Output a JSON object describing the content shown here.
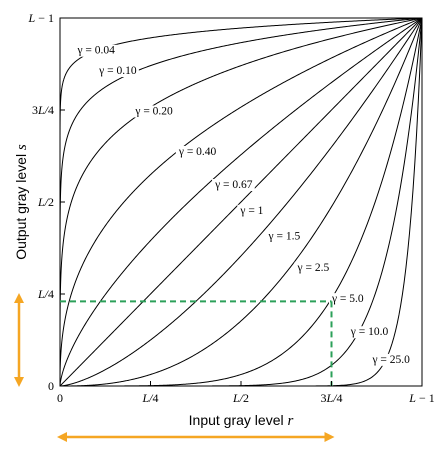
{
  "chart_data": {
    "type": "line",
    "title": "",
    "xlabel": "Input gray level",
    "xlabel_var": "r",
    "ylabel": "Output gray level",
    "ylabel_var": "s",
    "xlim": [
      0,
      1
    ],
    "ylim": [
      0,
      1
    ],
    "x_ticks": [
      {
        "value": 0,
        "label": "0"
      },
      {
        "value": 0.25,
        "label": "L/4"
      },
      {
        "value": 0.5,
        "label": "L/2"
      },
      {
        "value": 0.75,
        "label": "3L/4"
      },
      {
        "value": 1,
        "label": "L − 1"
      }
    ],
    "y_ticks": [
      {
        "value": 0,
        "label": "0"
      },
      {
        "value": 0.25,
        "label": "L/4"
      },
      {
        "value": 0.5,
        "label": "L/2"
      },
      {
        "value": 0.75,
        "label": "3L/4"
      },
      {
        "value": 1,
        "label": "L − 1"
      }
    ],
    "function": "s = (L-1) * (r/(L-1))^gamma",
    "series": [
      {
        "gamma": 0.04,
        "label": "γ = 0.04",
        "label_at": [
          0.1,
          0.91
        ]
      },
      {
        "gamma": 0.1,
        "label": "γ = 0.10",
        "label_at": [
          0.16,
          0.855
        ]
      },
      {
        "gamma": 0.2,
        "label": "γ = 0.20",
        "label_at": [
          0.26,
          0.745
        ]
      },
      {
        "gamma": 0.4,
        "label": "γ = 0.40",
        "label_at": [
          0.38,
          0.635
        ]
      },
      {
        "gamma": 0.67,
        "label": "γ = 0.67",
        "label_at": [
          0.48,
          0.545
        ]
      },
      {
        "gamma": 1.0,
        "label": "γ = 1",
        "label_at": [
          0.53,
          0.475
        ]
      },
      {
        "gamma": 1.5,
        "label": "γ = 1.5",
        "label_at": [
          0.62,
          0.405
        ]
      },
      {
        "gamma": 2.5,
        "label": "γ = 2.5",
        "label_at": [
          0.7,
          0.32
        ]
      },
      {
        "gamma": 5.0,
        "label": "γ = 5.0",
        "label_at": [
          0.795,
          0.235
        ]
      },
      {
        "gamma": 10.0,
        "label": "γ = 10.0",
        "label_at": [
          0.855,
          0.145
        ]
      },
      {
        "gamma": 25.0,
        "label": "γ = 25.0",
        "label_at": [
          0.915,
          0.07
        ]
      }
    ],
    "guide": {
      "x": 0.75,
      "y": 0.23,
      "color": "#2ca05a",
      "style": "dashed"
    },
    "range_arrows": {
      "color": "#f5a623",
      "vertical": [
        0,
        0.25
      ],
      "horizontal": [
        0,
        0.75
      ]
    },
    "grid": false,
    "legend": "none"
  }
}
